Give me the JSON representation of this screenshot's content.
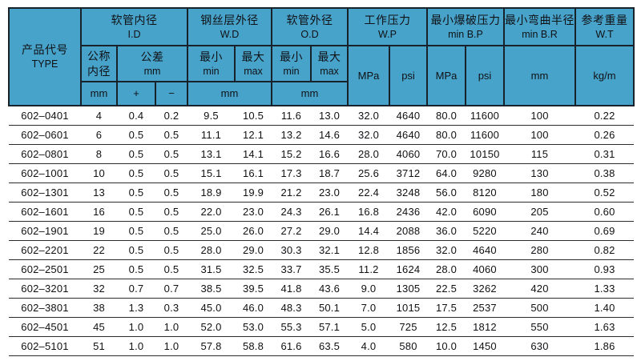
{
  "colors": {
    "header_bg": "#48a3cb",
    "grid_line": "#17222b",
    "row_line": "#2c2c2c",
    "text": "#101114",
    "page_bg": "#ffffff"
  },
  "table": {
    "header": {
      "type_zh": "产品代号",
      "type_en": "TYPE",
      "id_zh": "软管内径",
      "id_en": "I.D",
      "wd_zh": "钢丝层外径",
      "wd_en": "W.D",
      "od_zh": "软管外径",
      "od_en": "O.D",
      "wp_zh": "工作压力",
      "wp_en": "W.P",
      "bp_zh": "最小爆破压力",
      "bp_en": "min B.P",
      "br_zh": "最小弯曲半径",
      "br_en": "min B.R",
      "wt_zh": "参考重量",
      "wt_en": "W.T",
      "nominal_line1": "公称",
      "nominal_line2": "内径",
      "tolerance_zh": "公差",
      "tolerance_unit": "mm",
      "min_zh": "最小",
      "min_en": "min",
      "max_zh": "最大",
      "max_en": "max",
      "unit_mm": "mm",
      "unit_mpa": "MPa",
      "unit_psi": "psi",
      "unit_kgm": "kg/m",
      "plus": "+",
      "minus": "−"
    },
    "column_keys": [
      "type",
      "id_nominal",
      "tol_plus",
      "tol_minus",
      "wd_min",
      "wd_max",
      "od_min",
      "od_max",
      "wp_mpa",
      "wp_psi",
      "bp_mpa",
      "bp_psi",
      "br_mm",
      "wt_kgm"
    ],
    "rows": [
      [
        "602–0401",
        "4",
        "0.4",
        "0.2",
        "9.5",
        "10.5",
        "11.6",
        "13.0",
        "32.0",
        "4640",
        "80.0",
        "11600",
        "100",
        "0.22"
      ],
      [
        "602–0601",
        "6",
        "0.5",
        "0.5",
        "11.1",
        "12.1",
        "13.2",
        "14.6",
        "32.0",
        "4640",
        "80.0",
        "11600",
        "100",
        "0.26"
      ],
      [
        "602–0801",
        "8",
        "0.5",
        "0.5",
        "13.1",
        "14.1",
        "15.2",
        "16.6",
        "28.0",
        "4060",
        "70.0",
        "10150",
        "115",
        "0.31"
      ],
      [
        "602–1001",
        "10",
        "0.5",
        "0.5",
        "15.1",
        "16.1",
        "17.3",
        "18.7",
        "25.6",
        "3712",
        "64.0",
        "9280",
        "130",
        "0.38"
      ],
      [
        "602–1301",
        "13",
        "0.5",
        "0.5",
        "18.9",
        "19.9",
        "21.2",
        "23.0",
        "22.4",
        "3248",
        "56.0",
        "8120",
        "180",
        "0.52"
      ],
      [
        "602–1601",
        "16",
        "0.5",
        "0.5",
        "22.0",
        "23.0",
        "24.3",
        "26.1",
        "16.8",
        "2436",
        "42.0",
        "6090",
        "205",
        "0.60"
      ],
      [
        "602–1901",
        "19",
        "0.5",
        "0.5",
        "25.0",
        "26.0",
        "27.2",
        "29.0",
        "14.4",
        "2088",
        "36.0",
        "5220",
        "240",
        "0.69"
      ],
      [
        "602–2201",
        "22",
        "0.5",
        "0.5",
        "28.0",
        "29.0",
        "30.3",
        "32.1",
        "12.8",
        "1856",
        "32.0",
        "4640",
        "280",
        "0.82"
      ],
      [
        "602–2501",
        "25",
        "0.5",
        "0.5",
        "31.5",
        "32.5",
        "33.7",
        "35.5",
        "11.2",
        "1624",
        "28.0",
        "4060",
        "300",
        "0.93"
      ],
      [
        "602–3201",
        "32",
        "0.7",
        "0.7",
        "38.5",
        "39.5",
        "41.8",
        "43.6",
        "9.0",
        "1305",
        "22.5",
        "3262",
        "420",
        "1.33"
      ],
      [
        "602–3801",
        "38",
        "1.3",
        "0.3",
        "45.0",
        "46.0",
        "48.3",
        "50.1",
        "7.0",
        "1015",
        "17.5",
        "2537",
        "500",
        "1.40"
      ],
      [
        "602–4501",
        "45",
        "1.0",
        "1.0",
        "52.0",
        "53.0",
        "55.3",
        "57.1",
        "5.0",
        "725",
        "12.5",
        "1812",
        "550",
        "1.63"
      ],
      [
        "602–5101",
        "51",
        "1.0",
        "1.0",
        "57.8",
        "58.8",
        "61.6",
        "63.5",
        "4.0",
        "580",
        "10.0",
        "1450",
        "630",
        "1.86"
      ]
    ]
  }
}
